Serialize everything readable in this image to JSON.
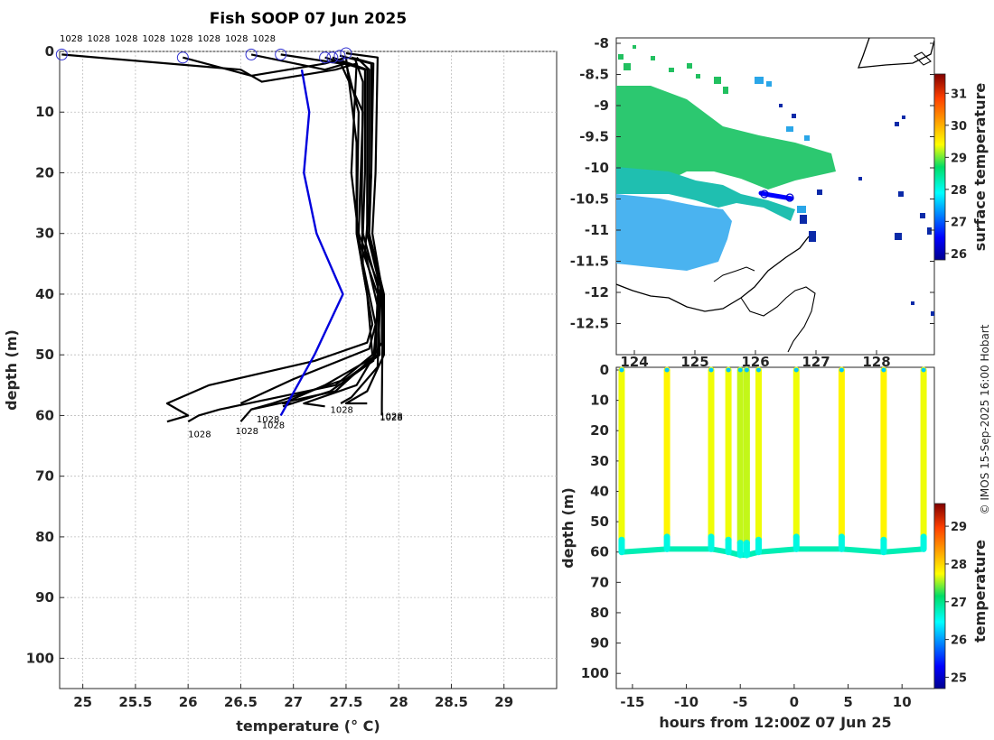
{
  "title": "Fish SOOP 07 Jun 2025",
  "credit": "© IMOS 15-Sep-2025 16:00 Hobart",
  "chart_data": [
    {
      "type": "line",
      "name": "temperature-profiles",
      "xlabel": "temperature (° C)",
      "ylabel": "depth (m)",
      "xlim": [
        24.78,
        29.5
      ],
      "ylim": [
        105,
        0
      ],
      "xticks": [
        "25",
        "25.5",
        "26",
        "26.5",
        "27",
        "27.5",
        "28",
        "28.5",
        "29"
      ],
      "yticks": [
        "0",
        "10",
        "20",
        "30",
        "40",
        "50",
        "60",
        "70",
        "80",
        "90",
        "100"
      ],
      "grid": true,
      "top_labels": [
        "1028",
        "1028",
        "1028",
        "1028",
        "1028",
        "1028",
        "1028",
        "1028"
      ],
      "bottom_labels": [
        "1028",
        "1028",
        "1028",
        "1028",
        "1028",
        "1028",
        "1028"
      ],
      "start_markers": [
        [
          24.8,
          0.5
        ],
        [
          25.95,
          1
        ],
        [
          26.6,
          0.5
        ],
        [
          26.88,
          0.5
        ],
        [
          27.3,
          1
        ],
        [
          27.37,
          1
        ],
        [
          27.44,
          0.7
        ],
        [
          27.5,
          0.3
        ]
      ],
      "series": [
        {
          "name": "profile-1",
          "color": "#000",
          "points": [
            [
              24.8,
              0.5
            ],
            [
              26.5,
              3
            ],
            [
              26.7,
              5
            ],
            [
              27.4,
              3
            ],
            [
              27.6,
              2
            ],
            [
              27.55,
              20
            ],
            [
              27.65,
              35
            ],
            [
              27.75,
              45
            ],
            [
              27.7,
              48
            ],
            [
              27.2,
              51
            ],
            [
              26.2,
              55
            ],
            [
              25.8,
              58
            ],
            [
              26.0,
              60
            ],
            [
              25.8,
              61
            ]
          ]
        },
        {
          "name": "profile-2",
          "color": "#000",
          "points": [
            [
              25.95,
              1
            ],
            [
              26.6,
              4
            ],
            [
              27.3,
              2
            ],
            [
              27.5,
              1
            ],
            [
              27.6,
              15
            ],
            [
              27.6,
              30
            ],
            [
              27.7,
              40
            ],
            [
              27.75,
              50
            ],
            [
              27.4,
              55
            ],
            [
              26.3,
              59
            ],
            [
              26.1,
              60
            ],
            [
              26.0,
              61
            ]
          ]
        },
        {
          "name": "profile-3",
          "color": "#000",
          "points": [
            [
              26.6,
              0.5
            ],
            [
              27.3,
              3
            ],
            [
              27.5,
              2
            ],
            [
              27.62,
              10
            ],
            [
              27.6,
              30
            ],
            [
              27.8,
              40
            ],
            [
              27.78,
              50
            ],
            [
              27.4,
              56
            ],
            [
              26.6,
              59
            ],
            [
              26.5,
              61
            ]
          ]
        },
        {
          "name": "profile-4",
          "color": "#000",
          "points": [
            [
              26.88,
              0.5
            ],
            [
              27.45,
              2
            ],
            [
              27.66,
              10
            ],
            [
              27.62,
              30
            ],
            [
              27.8,
              38
            ],
            [
              27.82,
              50
            ],
            [
              27.5,
              54
            ],
            [
              26.8,
              58
            ],
            [
              26.6,
              59
            ]
          ]
        },
        {
          "name": "profile-5",
          "color": "#000",
          "points": [
            [
              27.3,
              1
            ],
            [
              27.68,
              3
            ],
            [
              27.68,
              20
            ],
            [
              27.66,
              30
            ],
            [
              27.82,
              40
            ],
            [
              27.8,
              50
            ],
            [
              27.3,
              55
            ],
            [
              26.9,
              58
            ],
            [
              27.0,
              58
            ]
          ]
        },
        {
          "name": "profile-6",
          "color": "#000",
          "points": [
            [
              27.37,
              1
            ],
            [
              27.7,
              3
            ],
            [
              27.7,
              20
            ],
            [
              27.7,
              30
            ],
            [
              27.84,
              40
            ],
            [
              27.84,
              48
            ],
            [
              27.6,
              55
            ],
            [
              27.1,
              58
            ],
            [
              27.3,
              58.5
            ]
          ]
        },
        {
          "name": "profile-7",
          "color": "#000",
          "points": [
            [
              27.44,
              0.7
            ],
            [
              27.74,
              2
            ],
            [
              27.74,
              20
            ],
            [
              27.72,
              30
            ],
            [
              27.86,
              40
            ],
            [
              27.86,
              50
            ],
            [
              27.7,
              56
            ],
            [
              27.5,
              58
            ],
            [
              27.7,
              58
            ]
          ]
        },
        {
          "name": "profile-8",
          "color": "#000",
          "points": [
            [
              27.5,
              0.3
            ],
            [
              27.8,
              1
            ],
            [
              27.78,
              20
            ],
            [
              27.75,
              30
            ],
            [
              27.85,
              40
            ],
            [
              27.84,
              58
            ],
            [
              27.84,
              60
            ]
          ]
        },
        {
          "name": "profile-9",
          "color": "#000",
          "points": [
            [
              27.55,
              1
            ],
            [
              27.76,
              2
            ],
            [
              27.74,
              20
            ],
            [
              27.7,
              30
            ],
            [
              27.83,
              38
            ],
            [
              27.8,
              52
            ],
            [
              27.55,
              57
            ],
            [
              27.45,
              58
            ]
          ]
        },
        {
          "name": "profile-10",
          "color": "#000",
          "points": [
            [
              27.6,
              1
            ],
            [
              27.72,
              3
            ],
            [
              27.72,
              25
            ],
            [
              27.68,
              33
            ],
            [
              27.8,
              42
            ],
            [
              27.76,
              51
            ],
            [
              27.35,
              56
            ],
            [
              26.9,
              58.5
            ]
          ]
        },
        {
          "name": "profile-11",
          "color": "#000",
          "points": [
            [
              27.58,
              1
            ],
            [
              27.66,
              5
            ],
            [
              27.65,
              25
            ],
            [
              27.66,
              35
            ],
            [
              27.78,
              45
            ],
            [
              27.72,
              49
            ],
            [
              27.0,
              54
            ],
            [
              26.5,
              58
            ]
          ]
        },
        {
          "name": "climatology",
          "color": "#0000dd",
          "points": [
            [
              27.08,
              3
            ],
            [
              27.15,
              10
            ],
            [
              27.1,
              20
            ],
            [
              27.22,
              30
            ],
            [
              27.47,
              40
            ],
            [
              27.2,
              50
            ],
            [
              26.88,
              60
            ]
          ]
        }
      ]
    },
    {
      "type": "heatmap",
      "name": "sst-map",
      "colorbar_label": "surface temperature",
      "colorbar_range": [
        25.8,
        31.6
      ],
      "colorbar_ticks": [
        "26",
        "27",
        "28",
        "29",
        "30",
        "31"
      ],
      "xticks": [
        "124",
        "125",
        "126",
        "127",
        "128"
      ],
      "yticks": [
        "-8",
        "-8.5",
        "-9",
        "-9.5",
        "-10",
        "-10.5",
        "-11",
        "-11.5",
        "-12",
        "-12.5"
      ]
    },
    {
      "type": "scatter",
      "name": "depth-time-section",
      "xlabel": "hours from 12:00Z 07 Jun 25",
      "ylabel": "depth (m)",
      "xlim": [
        -16.5,
        13
      ],
      "ylim": [
        105,
        0
      ],
      "xticks": [
        "-15",
        "-10",
        "-5",
        "0",
        "5",
        "10"
      ],
      "yticks": [
        "0",
        "10",
        "20",
        "30",
        "40",
        "50",
        "60",
        "70",
        "80",
        "90",
        "100"
      ],
      "colorbar_label": "temperature",
      "colorbar_range": [
        24.7,
        29.6
      ],
      "colorbar_ticks": [
        "25",
        "26",
        "27",
        "28",
        "29"
      ],
      "casts": [
        -16,
        -11.8,
        -7.7,
        -6.1,
        -5.0,
        -4.4,
        -3.3,
        0.2,
        4.4,
        8.3,
        12.0
      ],
      "cast_bottom_depths": [
        60,
        59,
        59,
        60,
        61,
        61,
        60,
        59,
        59,
        60,
        59
      ],
      "column_temperatures": [
        27.7,
        27.8,
        27.7,
        27.7,
        27.6,
        27.6,
        27.7,
        27.7,
        27.8,
        27.8,
        27.7
      ]
    }
  ]
}
